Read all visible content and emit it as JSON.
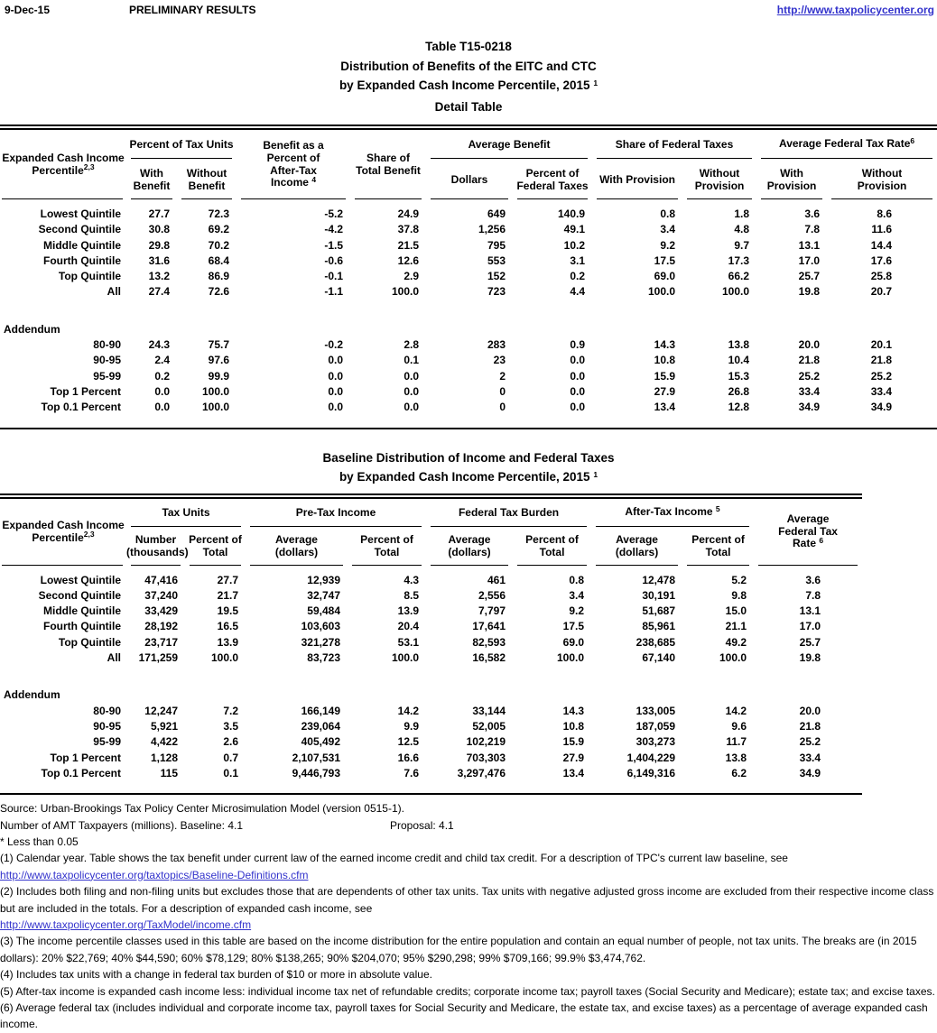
{
  "colors": {
    "text": "#000000",
    "link": "#3333cc",
    "rule": "#000000"
  },
  "page_header": {
    "date": "9-Dec-15",
    "status": "PRELIMINARY RESULTS",
    "site_url": "http://www.taxpolicycenter.org"
  },
  "titles": {
    "t1_line1": "Table T15-0218",
    "t1_line2": "Distribution of Benefits of the EITC and CTC",
    "t1_line3": "by Expanded Cash Income Percentile, 2015",
    "t1_line3_sup": "1",
    "t1_line4": "Detail Table",
    "t2_line1": "Baseline Distribution of Income and Federal Taxes",
    "t2_line2": "by Expanded Cash Income Percentile, 2015",
    "t2_line2_sup": "1"
  },
  "table1": {
    "stub": {
      "line1": "Expanded Cash Income",
      "line2": "Percentile",
      "sup": "2,3"
    },
    "groups": [
      {
        "label": "Percent of Tax Units",
        "span": 2,
        "sup": "",
        "sup_space": false
      },
      {
        "label": "Benefit as a\nPercent of\nAfter-Tax\nIncome",
        "span": 1,
        "sup": "4",
        "sup_space": true
      },
      {
        "label": "Share of\nTotal Benefit",
        "span": 1,
        "sup": "",
        "sup_space": false
      },
      {
        "label": "Average Benefit",
        "span": 2,
        "sup": "",
        "sup_space": false
      },
      {
        "label": "Share of Federal Taxes",
        "span": 2,
        "sup": "",
        "sup_space": false
      },
      {
        "label": "Average Federal Tax Rate",
        "span": 2,
        "sup": "6",
        "sup_space": false
      }
    ],
    "subheads": [
      "With\nBenefit",
      "Without\nBenefit",
      "Dollars",
      "Percent of\nFederal Taxes",
      "With Provision",
      "Without\nProvision",
      "With\nProvision",
      "Without\nProvision"
    ],
    "rows": [
      {
        "label": "Lowest Quintile",
        "values": [
          "27.7",
          "72.3",
          "-5.2",
          "24.9",
          "649",
          "140.9",
          "0.8",
          "1.8",
          "3.6",
          "8.6"
        ]
      },
      {
        "label": "Second Quintile",
        "values": [
          "30.8",
          "69.2",
          "-4.2",
          "37.8",
          "1,256",
          "49.1",
          "3.4",
          "4.8",
          "7.8",
          "11.6"
        ]
      },
      {
        "label": "Middle Quintile",
        "values": [
          "29.8",
          "70.2",
          "-1.5",
          "21.5",
          "795",
          "10.2",
          "9.2",
          "9.7",
          "13.1",
          "14.4"
        ]
      },
      {
        "label": "Fourth Quintile",
        "values": [
          "31.6",
          "68.4",
          "-0.6",
          "12.6",
          "553",
          "3.1",
          "17.5",
          "17.3",
          "17.0",
          "17.6"
        ]
      },
      {
        "label": "Top Quintile",
        "values": [
          "13.2",
          "86.9",
          "-0.1",
          "2.9",
          "152",
          "0.2",
          "69.0",
          "66.2",
          "25.7",
          "25.8"
        ]
      },
      {
        "label": "All",
        "values": [
          "27.4",
          "72.6",
          "-1.1",
          "100.0",
          "723",
          "4.4",
          "100.0",
          "100.0",
          "19.8",
          "20.7"
        ]
      }
    ],
    "addendum_label": "Addendum",
    "addendum_rows": [
      {
        "label": "80-90",
        "values": [
          "24.3",
          "75.7",
          "-0.2",
          "2.8",
          "283",
          "0.9",
          "14.3",
          "13.8",
          "20.0",
          "20.1"
        ]
      },
      {
        "label": "90-95",
        "values": [
          "2.4",
          "97.6",
          "0.0",
          "0.1",
          "23",
          "0.0",
          "10.8",
          "10.4",
          "21.8",
          "21.8"
        ]
      },
      {
        "label": "95-99",
        "values": [
          "0.2",
          "99.9",
          "0.0",
          "0.0",
          "2",
          "0.0",
          "15.9",
          "15.3",
          "25.2",
          "25.2"
        ]
      },
      {
        "label": "Top 1 Percent",
        "values": [
          "0.0",
          "100.0",
          "0.0",
          "0.0",
          "0",
          "0.0",
          "27.9",
          "26.8",
          "33.4",
          "33.4"
        ]
      },
      {
        "label": "Top 0.1 Percent",
        "values": [
          "0.0",
          "100.0",
          "0.0",
          "0.0",
          "0",
          "0.0",
          "13.4",
          "12.8",
          "34.9",
          "34.9"
        ]
      }
    ]
  },
  "table2": {
    "stub": {
      "line1": "Expanded Cash Income",
      "line2": "Percentile",
      "sup": "2,3"
    },
    "groups": [
      {
        "label": "Tax Units",
        "span": 2,
        "sup": "",
        "sup_space": false
      },
      {
        "label": "Pre-Tax Income",
        "span": 2,
        "sup": "",
        "sup_space": false
      },
      {
        "label": "Federal Tax Burden",
        "span": 2,
        "sup": "",
        "sup_space": false
      },
      {
        "label": "After-Tax Income",
        "span": 2,
        "sup": "5",
        "sup_space": true
      },
      {
        "label": "Average\nFederal Tax\nRate",
        "span": 1,
        "sup": "6",
        "sup_space": true
      }
    ],
    "subheads": [
      "Number\n(thousands)",
      "Percent of\nTotal",
      "Average\n(dollars)",
      "Percent of\nTotal",
      "Average\n(dollars)",
      "Percent of\nTotal",
      "Average\n(dollars)",
      "Percent of\nTotal"
    ],
    "rows": [
      {
        "label": "Lowest Quintile",
        "values": [
          "47,416",
          "27.7",
          "12,939",
          "4.3",
          "461",
          "0.8",
          "12,478",
          "5.2",
          "3.6"
        ]
      },
      {
        "label": "Second Quintile",
        "values": [
          "37,240",
          "21.7",
          "32,747",
          "8.5",
          "2,556",
          "3.4",
          "30,191",
          "9.8",
          "7.8"
        ]
      },
      {
        "label": "Middle Quintile",
        "values": [
          "33,429",
          "19.5",
          "59,484",
          "13.9",
          "7,797",
          "9.2",
          "51,687",
          "15.0",
          "13.1"
        ]
      },
      {
        "label": "Fourth Quintile",
        "values": [
          "28,192",
          "16.5",
          "103,603",
          "20.4",
          "17,641",
          "17.5",
          "85,961",
          "21.1",
          "17.0"
        ]
      },
      {
        "label": "Top Quintile",
        "values": [
          "23,717",
          "13.9",
          "321,278",
          "53.1",
          "82,593",
          "69.0",
          "238,685",
          "49.2",
          "25.7"
        ]
      },
      {
        "label": "All",
        "values": [
          "171,259",
          "100.0",
          "83,723",
          "100.0",
          "16,582",
          "100.0",
          "67,140",
          "100.0",
          "19.8"
        ]
      }
    ],
    "addendum_label": "Addendum",
    "addendum_rows": [
      {
        "label": "80-90",
        "values": [
          "12,247",
          "7.2",
          "166,149",
          "14.2",
          "33,144",
          "14.3",
          "133,005",
          "14.2",
          "20.0"
        ]
      },
      {
        "label": "90-95",
        "values": [
          "5,921",
          "3.5",
          "239,064",
          "9.9",
          "52,005",
          "10.8",
          "187,059",
          "9.6",
          "21.8"
        ]
      },
      {
        "label": "95-99",
        "values": [
          "4,422",
          "2.6",
          "405,492",
          "12.5",
          "102,219",
          "15.9",
          "303,273",
          "11.7",
          "25.2"
        ]
      },
      {
        "label": "Top 1 Percent",
        "values": [
          "1,128",
          "0.7",
          "2,107,531",
          "16.6",
          "703,303",
          "27.9",
          "1,404,229",
          "13.8",
          "33.4"
        ]
      },
      {
        "label": "Top 0.1 Percent",
        "values": [
          "115",
          "0.1",
          "9,446,793",
          "7.6",
          "3,297,476",
          "13.4",
          "6,149,316",
          "6.2",
          "34.9"
        ]
      }
    ]
  },
  "notes": [
    {
      "type": "text",
      "text": "Source: Urban-Brookings Tax Policy Center Microsimulation Model (version 0515-1)."
    },
    {
      "type": "amt",
      "baseline": "Number of AMT Taxpayers (millions).  Baseline: 4.1",
      "proposal": "Proposal: 4.1"
    },
    {
      "type": "text",
      "text": "* Less than 0.05"
    },
    {
      "type": "text",
      "text": "(1) Calendar year. Table shows the tax benefit under current law of the earned income credit and child tax credit.  For a description of TPC's current law baseline, see"
    },
    {
      "type": "link",
      "text": "http://www.taxpolicycenter.org/taxtopics/Baseline-Definitions.cfm"
    },
    {
      "type": "text",
      "text": "(2) Includes both filing and non-filing units but excludes those that are dependents of other tax units. Tax units with negative adjusted gross income are excluded from their respective income class but are included in the totals. For a description of expanded cash income, see"
    },
    {
      "type": "link",
      "text": "http://www.taxpolicycenter.org/TaxModel/income.cfm"
    },
    {
      "type": "text",
      "text": "(3) The income percentile classes used in this table are based on the income distribution for the entire population and contain an equal number of people, not tax units. The breaks are (in 2015 dollars): 20% $22,769; 40% $44,590; 60% $78,129; 80% $138,265; 90% $204,070; 95% $290,298; 99% $709,166; 99.9% $3,474,762."
    },
    {
      "type": "text",
      "text": "(4) Includes tax units with a change in federal tax burden of $10 or more in absolute value."
    },
    {
      "type": "text",
      "text": "(5) After-tax income is expanded cash income less: individual income tax net of refundable credits; corporate income tax; payroll taxes (Social Security and Medicare); estate tax; and excise taxes."
    },
    {
      "type": "text",
      "text": "(6) Average federal tax (includes individual and corporate income tax, payroll taxes for Social Security and Medicare, the estate tax, and excise taxes) as a percentage of average expanded cash income."
    }
  ]
}
